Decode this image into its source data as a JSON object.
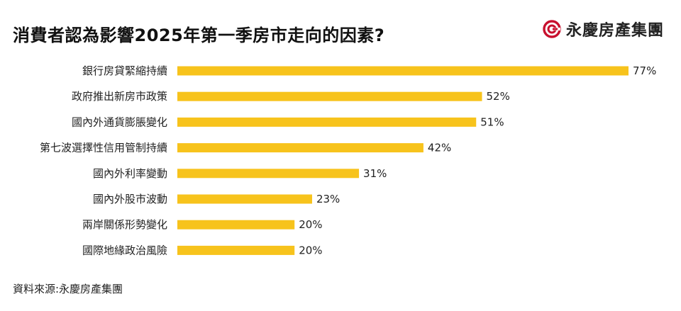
{
  "title": "消費者認為影響2025年第一季房市走向的因素?",
  "brand": {
    "name": "永慶房產集團",
    "logo_icon": "yongqing-logo-icon",
    "logo_color": "#c8102e"
  },
  "source": "資料來源:永慶房產集團",
  "colors": {
    "bar": "#f7c31c"
  },
  "chart_data": {
    "type": "bar",
    "orientation": "horizontal",
    "categories": [
      "銀行房貸緊縮持續",
      "政府推出新房市政策",
      "國內外通貨膨脹變化",
      "第七波選擇性信用管制持續",
      "國內外利率變動",
      "國內外股市波動",
      "兩岸關係形勢變化",
      "國際地緣政治風險"
    ],
    "values": [
      77,
      52,
      51,
      42,
      31,
      23,
      20,
      20
    ],
    "value_labels": [
      "77%",
      "52%",
      "51%",
      "42%",
      "31%",
      "23%",
      "20%",
      "20%"
    ],
    "unit": "%",
    "xlim": [
      0,
      77
    ],
    "grid": false,
    "legend": "none"
  }
}
